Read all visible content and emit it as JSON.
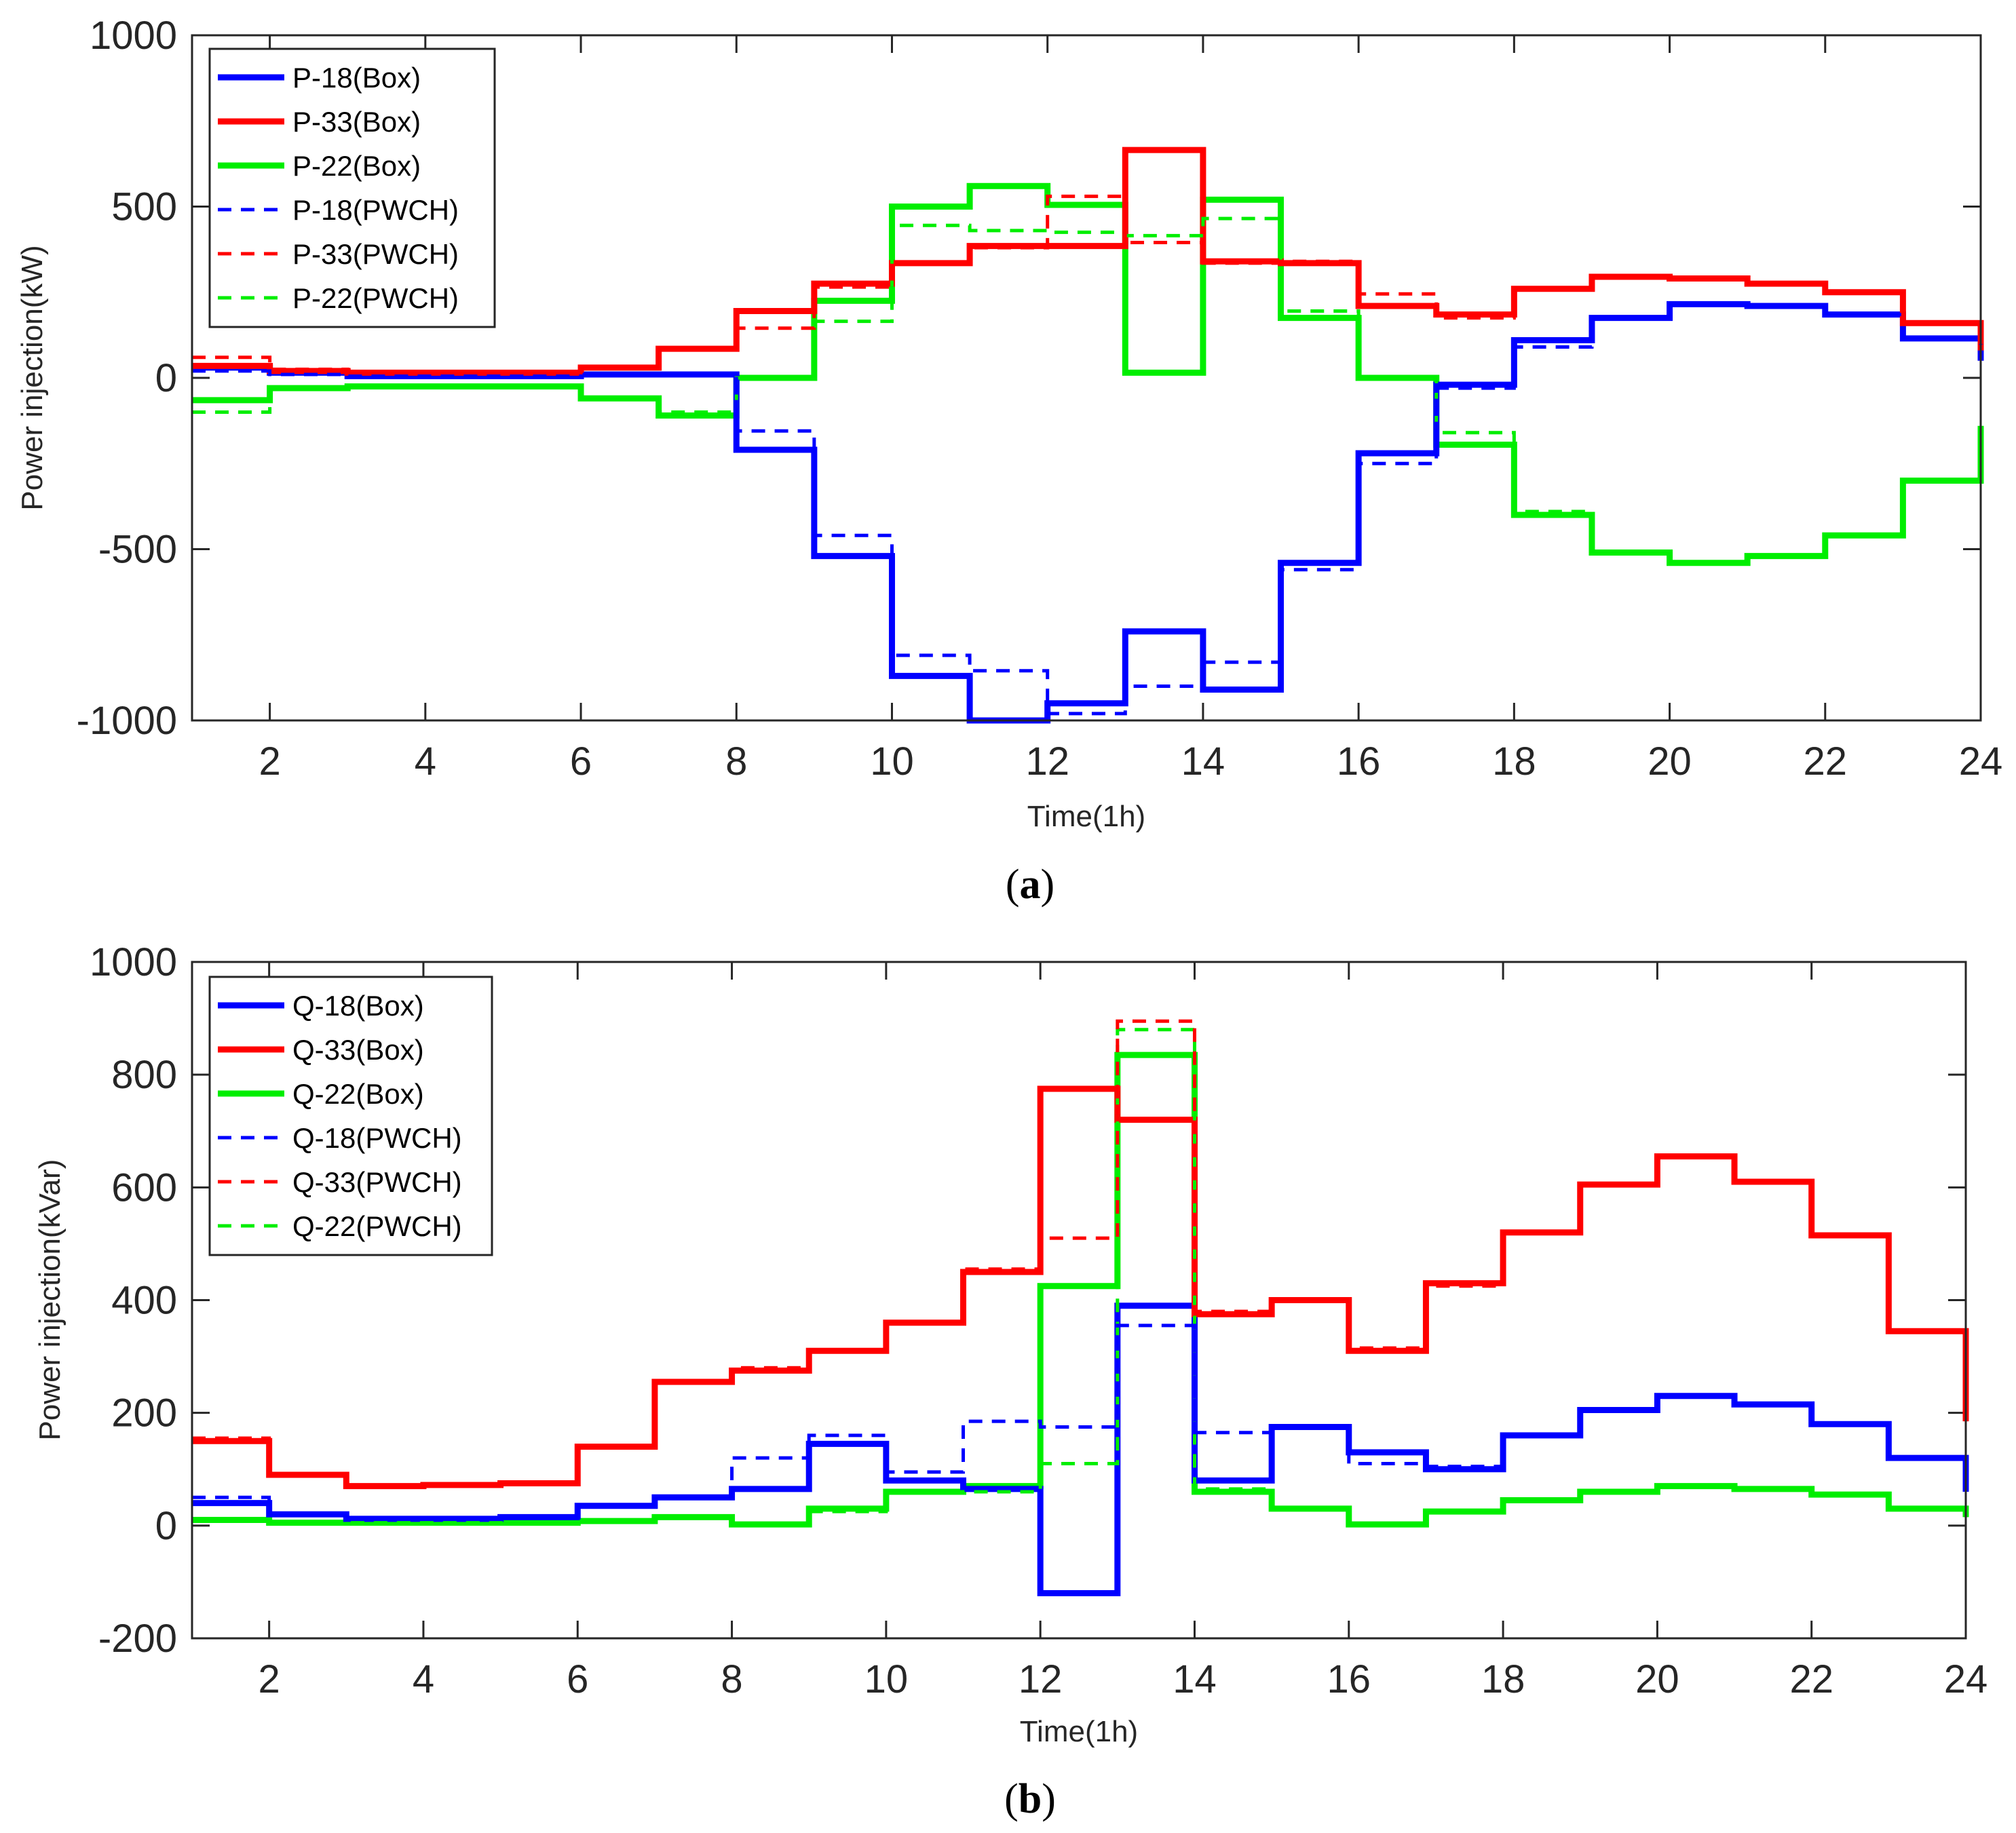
{
  "chart_data": [
    {
      "type": "line",
      "step": "post",
      "panel": "(a)",
      "panel_letter": "a",
      "xlabel": "Time(1h)",
      "ylabel": "Power injection(kW)",
      "xlim": [
        1,
        24
      ],
      "ylim": [
        -1000,
        1000
      ],
      "xticks": [
        2,
        4,
        6,
        8,
        10,
        12,
        14,
        16,
        18,
        20,
        22,
        24
      ],
      "yticks": [
        -1000,
        -500,
        0,
        500,
        1000
      ],
      "legend_position": "top-left",
      "x": [
        1,
        2,
        3,
        4,
        5,
        6,
        7,
        8,
        9,
        10,
        11,
        12,
        13,
        14,
        15,
        16,
        17,
        18,
        19,
        20,
        21,
        22,
        23,
        24
      ],
      "series": [
        {
          "name": "P-18(Box)",
          "color": "#0000ff",
          "style": "solid",
          "values": [
            30,
            15,
            5,
            5,
            5,
            10,
            10,
            -210,
            -520,
            -870,
            -1000,
            -950,
            -740,
            -910,
            -540,
            -220,
            -20,
            110,
            175,
            215,
            210,
            185,
            115,
            50
          ]
        },
        {
          "name": "P-33(Box)",
          "color": "#ff0000",
          "style": "solid",
          "values": [
            35,
            20,
            15,
            15,
            15,
            30,
            85,
            195,
            275,
            335,
            385,
            385,
            665,
            340,
            335,
            210,
            185,
            260,
            295,
            290,
            275,
            250,
            160,
            80
          ]
        },
        {
          "name": "P-22(Box)",
          "color": "#00ee00",
          "style": "solid",
          "values": [
            -65,
            -30,
            -25,
            -25,
            -25,
            -60,
            -110,
            0,
            225,
            500,
            560,
            505,
            15,
            520,
            175,
            0,
            -195,
            -400,
            -510,
            -540,
            -520,
            -460,
            -300,
            -140
          ]
        },
        {
          "name": "P-18(PWCH)",
          "color": "#0000ff",
          "style": "dashed",
          "values": [
            20,
            10,
            5,
            5,
            5,
            10,
            10,
            -155,
            -460,
            -810,
            -855,
            -980,
            -900,
            -830,
            -560,
            -250,
            -30,
            90,
            175,
            215,
            210,
            185,
            115,
            50
          ]
        },
        {
          "name": "P-33(PWCH)",
          "color": "#ff0000",
          "style": "dashed",
          "values": [
            60,
            25,
            15,
            15,
            15,
            30,
            85,
            145,
            265,
            335,
            380,
            530,
            395,
            335,
            340,
            245,
            175,
            260,
            295,
            290,
            275,
            250,
            160,
            80
          ]
        },
        {
          "name": "P-22(PWCH)",
          "color": "#00ee00",
          "style": "dashed",
          "values": [
            -100,
            -30,
            -25,
            -25,
            -25,
            -60,
            -100,
            0,
            165,
            445,
            430,
            425,
            415,
            465,
            195,
            0,
            -160,
            -390,
            -510,
            -540,
            -520,
            -460,
            -300,
            -140
          ]
        }
      ]
    },
    {
      "type": "line",
      "step": "post",
      "panel": "(b)",
      "panel_letter": "b",
      "xlabel": "Time(1h)",
      "ylabel": "Power injection(kVar)",
      "xlim": [
        1,
        24
      ],
      "ylim": [
        -200,
        1000
      ],
      "xticks": [
        2,
        4,
        6,
        8,
        10,
        12,
        14,
        16,
        18,
        20,
        22,
        24
      ],
      "yticks": [
        -200,
        0,
        200,
        400,
        600,
        800,
        1000
      ],
      "legend_position": "top-left",
      "x": [
        1,
        2,
        3,
        4,
        5,
        6,
        7,
        8,
        9,
        10,
        11,
        12,
        13,
        14,
        15,
        16,
        17,
        18,
        19,
        20,
        21,
        22,
        23,
        24
      ],
      "series": [
        {
          "name": "Q-18(Box)",
          "color": "#0000ff",
          "style": "solid",
          "values": [
            40,
            20,
            12,
            12,
            15,
            35,
            50,
            65,
            145,
            80,
            65,
            -120,
            390,
            80,
            175,
            130,
            100,
            160,
            205,
            230,
            215,
            180,
            120,
            60
          ]
        },
        {
          "name": "Q-33(Box)",
          "color": "#ff0000",
          "style": "solid",
          "values": [
            150,
            90,
            70,
            72,
            75,
            140,
            255,
            275,
            310,
            360,
            450,
            775,
            720,
            375,
            400,
            310,
            430,
            520,
            605,
            655,
            610,
            515,
            345,
            185
          ]
        },
        {
          "name": "Q-22(Box)",
          "color": "#00ee00",
          "style": "solid",
          "values": [
            10,
            5,
            5,
            5,
            5,
            8,
            15,
            2,
            30,
            60,
            70,
            425,
            835,
            60,
            30,
            2,
            25,
            45,
            60,
            70,
            65,
            55,
            30,
            15
          ]
        },
        {
          "name": "Q-18(PWCH)",
          "color": "#0000ff",
          "style": "dashed",
          "values": [
            50,
            20,
            12,
            12,
            15,
            35,
            50,
            120,
            160,
            95,
            185,
            175,
            355,
            165,
            175,
            110,
            105,
            160,
            205,
            230,
            215,
            180,
            120,
            60
          ]
        },
        {
          "name": "Q-33(PWCH)",
          "color": "#ff0000",
          "style": "dashed",
          "values": [
            155,
            90,
            70,
            72,
            75,
            140,
            255,
            280,
            310,
            360,
            455,
            510,
            895,
            380,
            400,
            315,
            425,
            520,
            605,
            655,
            610,
            515,
            345,
            185
          ]
        },
        {
          "name": "Q-22(PWCH)",
          "color": "#00ee00",
          "style": "dashed",
          "values": [
            10,
            5,
            5,
            5,
            5,
            8,
            15,
            2,
            25,
            60,
            60,
            110,
            880,
            65,
            30,
            2,
            25,
            45,
            60,
            70,
            65,
            55,
            30,
            15
          ]
        }
      ]
    }
  ]
}
